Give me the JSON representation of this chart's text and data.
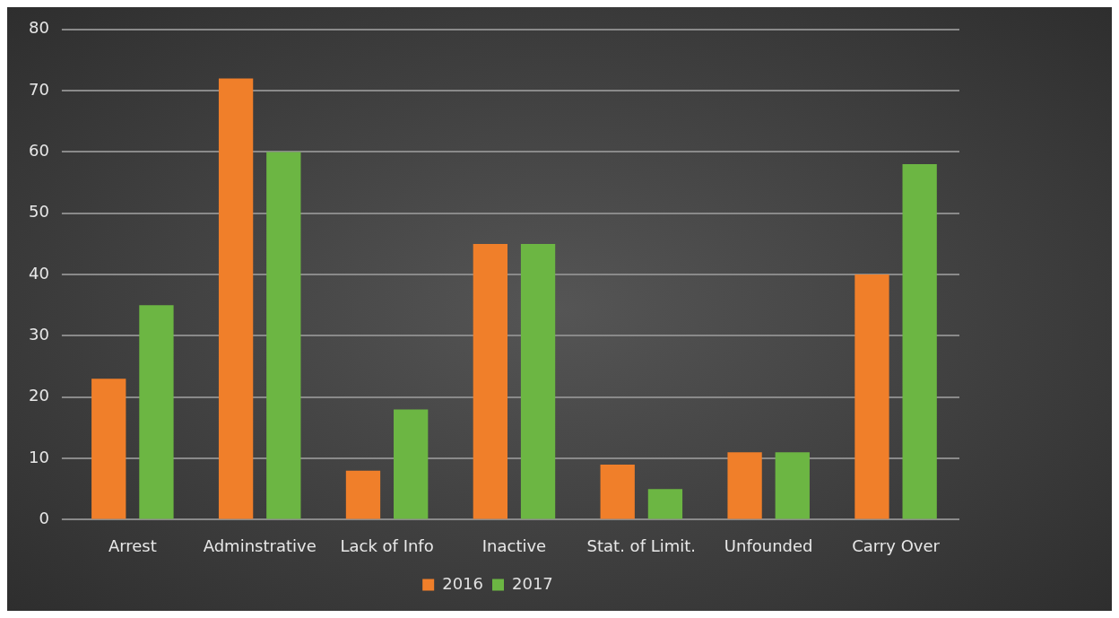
{
  "chart_data": {
    "type": "bar",
    "categories": [
      "Arrest",
      "Adminstrative",
      "Lack of Info",
      "Inactive",
      "Stat. of Limit.",
      "Unfounded",
      "Carry Over"
    ],
    "series": [
      {
        "name": "2016",
        "color": "#f07f2a",
        "values": [
          23,
          72,
          8,
          45,
          9,
          11,
          40
        ]
      },
      {
        "name": "2017",
        "color": "#6cb643",
        "values": [
          35,
          60,
          18,
          45,
          5,
          11,
          58
        ]
      }
    ],
    "ylim": [
      0,
      80
    ],
    "yticks": [
      0,
      10,
      20,
      30,
      40,
      50,
      60,
      70,
      80
    ],
    "grid": "y",
    "legend": "bottom"
  }
}
